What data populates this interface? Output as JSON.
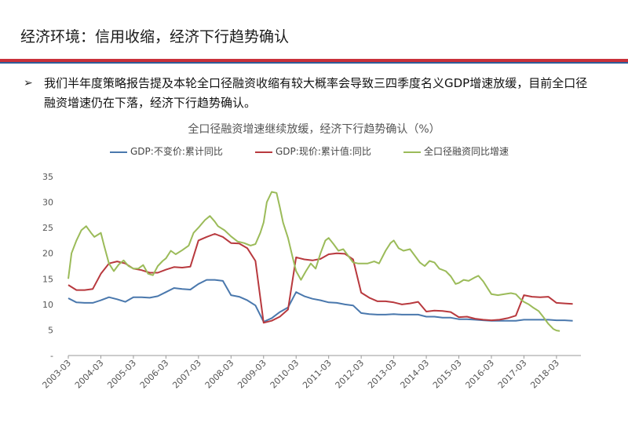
{
  "slide": {
    "title": "经济环境：信用收缩，经济下行趋势确认",
    "bullet_marker": "➢",
    "bullet_text": "我们半年度策略报告提及本轮全口径融资收缩有较大概率会导致三四季度名义GDP增速放缓，目前全口径融资增速仍在下落，经济下行趋势确认。"
  },
  "chart_data": {
    "type": "line",
    "title": "全口径融资增速继续放缓，经济下行趋势确认（%）",
    "legend_position": "top",
    "ylim": [
      0,
      35
    ],
    "yticks": [
      0,
      5,
      10,
      15,
      20,
      25,
      30,
      35
    ],
    "ytick_labels": [
      "-",
      "5",
      "10",
      "15",
      "20",
      "25",
      "30",
      "35"
    ],
    "xlim": [
      2003.0,
      2018.75
    ],
    "xticks": [
      2003,
      2004,
      2005,
      2006,
      2007,
      2008,
      2009,
      2010,
      2011,
      2012,
      2013,
      2014,
      2015,
      2016,
      2017,
      2018
    ],
    "xtick_labels": [
      "2003-03",
      "2004-03",
      "2005-03",
      "2006-03",
      "2007-03",
      "2008-03",
      "2009-03",
      "2010-03",
      "2011-03",
      "2012-03",
      "2013-03",
      "2014-03",
      "2015-03",
      "2016-03",
      "2017-03",
      "2018-03"
    ],
    "grid": false,
    "series": [
      {
        "name": "GDP:不变价:累计同比",
        "color": "#4a78ad",
        "points": [
          [
            2003.0,
            11.2
          ],
          [
            2003.25,
            10.4
          ],
          [
            2003.5,
            10.3
          ],
          [
            2003.75,
            10.3
          ],
          [
            2004.0,
            10.8
          ],
          [
            2004.25,
            11.4
          ],
          [
            2004.5,
            11.0
          ],
          [
            2004.75,
            10.5
          ],
          [
            2005.0,
            11.4
          ],
          [
            2005.25,
            11.4
          ],
          [
            2005.5,
            11.3
          ],
          [
            2005.75,
            11.6
          ],
          [
            2006.0,
            12.4
          ],
          [
            2006.25,
            13.2
          ],
          [
            2006.5,
            13.0
          ],
          [
            2006.75,
            12.9
          ],
          [
            2007.0,
            14.0
          ],
          [
            2007.25,
            14.8
          ],
          [
            2007.5,
            14.8
          ],
          [
            2007.75,
            14.6
          ],
          [
            2008.0,
            11.8
          ],
          [
            2008.25,
            11.5
          ],
          [
            2008.5,
            10.8
          ],
          [
            2008.75,
            9.8
          ],
          [
            2009.0,
            6.6
          ],
          [
            2009.25,
            7.3
          ],
          [
            2009.5,
            8.5
          ],
          [
            2009.75,
            9.4
          ],
          [
            2010.0,
            12.4
          ],
          [
            2010.25,
            11.6
          ],
          [
            2010.5,
            11.1
          ],
          [
            2010.75,
            10.8
          ],
          [
            2011.0,
            10.4
          ],
          [
            2011.25,
            10.3
          ],
          [
            2011.5,
            10.0
          ],
          [
            2011.75,
            9.8
          ],
          [
            2012.0,
            8.3
          ],
          [
            2012.25,
            8.1
          ],
          [
            2012.5,
            8.0
          ],
          [
            2012.75,
            8.0
          ],
          [
            2013.0,
            8.1
          ],
          [
            2013.25,
            8.0
          ],
          [
            2013.5,
            8.0
          ],
          [
            2013.75,
            8.0
          ],
          [
            2014.0,
            7.6
          ],
          [
            2014.25,
            7.6
          ],
          [
            2014.5,
            7.4
          ],
          [
            2014.75,
            7.4
          ],
          [
            2015.0,
            7.1
          ],
          [
            2015.25,
            7.1
          ],
          [
            2015.5,
            7.0
          ],
          [
            2015.75,
            6.9
          ],
          [
            2016.0,
            6.8
          ],
          [
            2016.25,
            6.8
          ],
          [
            2016.5,
            6.8
          ],
          [
            2016.75,
            6.8
          ],
          [
            2017.0,
            7.0
          ],
          [
            2017.25,
            7.0
          ],
          [
            2017.5,
            7.0
          ],
          [
            2017.75,
            7.0
          ],
          [
            2018.0,
            6.9
          ],
          [
            2018.25,
            6.9
          ],
          [
            2018.5,
            6.8
          ]
        ]
      },
      {
        "name": "GDP:现价:累计值:同比",
        "color": "#b8393e",
        "points": [
          [
            2003.0,
            13.8
          ],
          [
            2003.25,
            12.8
          ],
          [
            2003.5,
            12.8
          ],
          [
            2003.75,
            13.0
          ],
          [
            2004.0,
            16.0
          ],
          [
            2004.25,
            18.0
          ],
          [
            2004.5,
            18.4
          ],
          [
            2004.75,
            18.0
          ],
          [
            2005.0,
            17.0
          ],
          [
            2005.25,
            16.7
          ],
          [
            2005.5,
            16.2
          ],
          [
            2005.75,
            16.2
          ],
          [
            2006.0,
            16.8
          ],
          [
            2006.25,
            17.3
          ],
          [
            2006.5,
            17.2
          ],
          [
            2006.75,
            17.4
          ],
          [
            2007.0,
            22.5
          ],
          [
            2007.25,
            23.2
          ],
          [
            2007.5,
            23.8
          ],
          [
            2007.75,
            23.2
          ],
          [
            2008.0,
            22.0
          ],
          [
            2008.25,
            21.9
          ],
          [
            2008.5,
            21.0
          ],
          [
            2008.75,
            18.5
          ],
          [
            2009.0,
            6.4
          ],
          [
            2009.25,
            6.8
          ],
          [
            2009.5,
            7.6
          ],
          [
            2009.75,
            9.0
          ],
          [
            2010.0,
            19.2
          ],
          [
            2010.25,
            18.8
          ],
          [
            2010.5,
            18.6
          ],
          [
            2010.75,
            18.9
          ],
          [
            2011.0,
            19.8
          ],
          [
            2011.25,
            20.0
          ],
          [
            2011.5,
            19.9
          ],
          [
            2011.75,
            18.8
          ],
          [
            2012.0,
            12.3
          ],
          [
            2012.25,
            11.3
          ],
          [
            2012.5,
            10.6
          ],
          [
            2012.75,
            10.6
          ],
          [
            2013.0,
            10.4
          ],
          [
            2013.25,
            10.0
          ],
          [
            2013.5,
            10.2
          ],
          [
            2013.75,
            10.5
          ],
          [
            2014.0,
            8.6
          ],
          [
            2014.25,
            8.8
          ],
          [
            2014.5,
            8.7
          ],
          [
            2014.75,
            8.5
          ],
          [
            2015.0,
            7.5
          ],
          [
            2015.25,
            7.6
          ],
          [
            2015.5,
            7.2
          ],
          [
            2015.75,
            7.0
          ],
          [
            2016.0,
            6.9
          ],
          [
            2016.25,
            7.0
          ],
          [
            2016.5,
            7.3
          ],
          [
            2016.75,
            7.8
          ],
          [
            2017.0,
            11.8
          ],
          [
            2017.25,
            11.5
          ],
          [
            2017.5,
            11.4
          ],
          [
            2017.75,
            11.5
          ],
          [
            2018.0,
            10.3
          ],
          [
            2018.25,
            10.2
          ],
          [
            2018.5,
            10.1
          ]
        ]
      },
      {
        "name": "全口径融资同比增速",
        "color": "#9bbb59",
        "points": [
          [
            2003.0,
            15.0
          ],
          [
            2003.1,
            20.0
          ],
          [
            2003.25,
            22.5
          ],
          [
            2003.4,
            24.5
          ],
          [
            2003.55,
            25.3
          ],
          [
            2003.7,
            24.0
          ],
          [
            2003.8,
            23.2
          ],
          [
            2004.0,
            24.0
          ],
          [
            2004.1,
            21.5
          ],
          [
            2004.25,
            18.0
          ],
          [
            2004.4,
            16.5
          ],
          [
            2004.55,
            17.8
          ],
          [
            2004.7,
            18.6
          ],
          [
            2004.85,
            17.5
          ],
          [
            2005.0,
            17.0
          ],
          [
            2005.15,
            17.0
          ],
          [
            2005.3,
            17.7
          ],
          [
            2005.45,
            16.0
          ],
          [
            2005.6,
            15.7
          ],
          [
            2005.75,
            17.5
          ],
          [
            2005.9,
            18.5
          ],
          [
            2006.0,
            19.0
          ],
          [
            2006.15,
            20.5
          ],
          [
            2006.3,
            19.8
          ],
          [
            2006.5,
            20.6
          ],
          [
            2006.7,
            21.5
          ],
          [
            2006.85,
            24.0
          ],
          [
            2007.0,
            25.0
          ],
          [
            2007.2,
            26.5
          ],
          [
            2007.35,
            27.3
          ],
          [
            2007.5,
            26.2
          ],
          [
            2007.6,
            25.3
          ],
          [
            2007.8,
            24.5
          ],
          [
            2008.0,
            23.3
          ],
          [
            2008.2,
            22.3
          ],
          [
            2008.4,
            22.0
          ],
          [
            2008.6,
            21.5
          ],
          [
            2008.75,
            21.8
          ],
          [
            2008.9,
            24.0
          ],
          [
            2009.0,
            26.0
          ],
          [
            2009.1,
            30.0
          ],
          [
            2009.25,
            32.0
          ],
          [
            2009.4,
            31.8
          ],
          [
            2009.5,
            29.0
          ],
          [
            2009.6,
            26.0
          ],
          [
            2009.75,
            23.0
          ],
          [
            2009.9,
            19.0
          ],
          [
            2010.0,
            16.5
          ],
          [
            2010.15,
            14.8
          ],
          [
            2010.3,
            16.5
          ],
          [
            2010.45,
            18.0
          ],
          [
            2010.6,
            17.0
          ],
          [
            2010.75,
            20.0
          ],
          [
            2010.9,
            22.5
          ],
          [
            2011.0,
            23.0
          ],
          [
            2011.15,
            21.8
          ],
          [
            2011.3,
            20.5
          ],
          [
            2011.45,
            20.8
          ],
          [
            2011.6,
            19.5
          ],
          [
            2011.75,
            18.2
          ],
          [
            2011.9,
            18.0
          ],
          [
            2012.0,
            18.0
          ],
          [
            2012.2,
            18.0
          ],
          [
            2012.4,
            18.4
          ],
          [
            2012.55,
            18.0
          ],
          [
            2012.75,
            20.5
          ],
          [
            2012.9,
            22.0
          ],
          [
            2013.0,
            22.5
          ],
          [
            2013.15,
            21.0
          ],
          [
            2013.3,
            20.5
          ],
          [
            2013.5,
            20.8
          ],
          [
            2013.65,
            19.5
          ],
          [
            2013.8,
            18.2
          ],
          [
            2013.95,
            17.5
          ],
          [
            2014.1,
            18.5
          ],
          [
            2014.25,
            18.2
          ],
          [
            2014.4,
            17.0
          ],
          [
            2014.6,
            16.5
          ],
          [
            2014.75,
            15.5
          ],
          [
            2014.9,
            14.0
          ],
          [
            2015.0,
            14.2
          ],
          [
            2015.15,
            14.8
          ],
          [
            2015.3,
            14.6
          ],
          [
            2015.5,
            15.3
          ],
          [
            2015.6,
            15.6
          ],
          [
            2015.75,
            14.5
          ],
          [
            2015.9,
            13.0
          ],
          [
            2016.0,
            12.0
          ],
          [
            2016.2,
            11.8
          ],
          [
            2016.4,
            12.0
          ],
          [
            2016.6,
            12.2
          ],
          [
            2016.75,
            12.0
          ],
          [
            2016.9,
            11.0
          ],
          [
            2017.0,
            10.5
          ],
          [
            2017.15,
            10.0
          ],
          [
            2017.3,
            9.3
          ],
          [
            2017.45,
            8.7
          ],
          [
            2017.6,
            7.5
          ],
          [
            2017.75,
            6.2
          ],
          [
            2017.9,
            5.2
          ],
          [
            2018.0,
            4.9
          ],
          [
            2018.1,
            4.8
          ]
        ]
      }
    ]
  }
}
